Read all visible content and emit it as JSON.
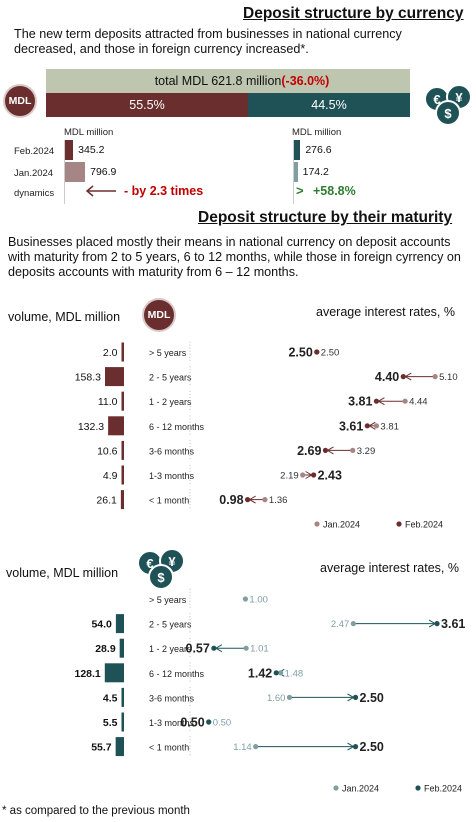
{
  "colors": {
    "mdl": "#6b2e2e",
    "mdl_light": "#a68585",
    "fx": "#1f5257",
    "fx_light": "#7f9fa3",
    "total_bar": "#bfc6b0",
    "negative": "#c00000",
    "positive": "#2e7d32"
  },
  "section1": {
    "title": "Deposit structure by currency",
    "intro": "The new term deposits attracted from businesses in national currency decreased, and those in foreign currency increased*.",
    "total_prefix": "total MDL 621.8 million ",
    "total_change": "(-36.0%)",
    "mdl_share_label": "55.5%",
    "fx_share_label": "44.5%",
    "mdl_share": 55.5,
    "mdl_icon_text": "MDL",
    "fx_icon_symbols": [
      "€",
      "¥",
      "$"
    ],
    "mdl_unit": "MDL million",
    "fx_unit": "MDL million",
    "rows": [
      {
        "label": "Feb.2024",
        "mdl": "345.2",
        "fx": "276.6",
        "mdl_value": 345.2,
        "fx_value": 276.6
      },
      {
        "label": "Jan.2024",
        "mdl": "796.9",
        "fx": "174.2",
        "mdl_value": 796.9,
        "fx_value": 174.2
      }
    ],
    "dynamics_label": "dynamics",
    "mdl_dynamics": "- by 2.3 times",
    "fx_dynamics": "+58.8%"
  },
  "section2": {
    "title": "Deposit structure by their maturity",
    "intro": "Businesses placed mostly their means in national currency on deposit accounts with maturity from 2 to 5 years,  6 to 12 months, while those in foreign cyrrency on deposits accounts with maturity from 6 – 12 months.",
    "volume_label": "volume, MDL million",
    "rates_label": "average interest rates, %",
    "legend_jan": "Jan.2024",
    "legend_feb": "Feb.2024"
  },
  "chart_data": [
    {
      "type": "bar",
      "title": "Deposit structure by currency",
      "categories": [
        "Feb.2024",
        "Jan.2024"
      ],
      "series": [
        {
          "name": "MDL",
          "values": [
            345.2,
            796.9
          ]
        },
        {
          "name": "foreign currency",
          "values": [
            276.6,
            174.2
          ]
        }
      ],
      "ylabel": "MDL million"
    },
    {
      "type": "bar",
      "title": "volume, MDL million",
      "currency": "MDL",
      "categories": [
        "> 5 years",
        "2 - 5 years",
        "1 - 2 years",
        "6 - 12 months",
        "3-6 months",
        "1-3 months",
        "< 1 month"
      ],
      "values": [
        2.0,
        158.3,
        11.0,
        132.3,
        10.6,
        4.9,
        26.1
      ],
      "value_labels": [
        "2.0",
        "158.3",
        "11.0",
        "132.3",
        "10.6",
        "4.9",
        "26.1"
      ]
    },
    {
      "type": "scatter",
      "title": "average interest rates, %",
      "currency": "MDL",
      "categories": [
        "> 5 years",
        "2 - 5 years",
        "1 - 2 years",
        "6 - 12 months",
        "3-6 months",
        "1-3 months",
        "< 1 month"
      ],
      "series": [
        {
          "name": "Jan.2024",
          "values": [
            2.5,
            5.1,
            4.44,
            3.81,
            3.29,
            2.19,
            1.36
          ]
        },
        {
          "name": "Feb.2024",
          "values": [
            2.5,
            4.4,
            3.81,
            3.61,
            2.69,
            2.43,
            0.98
          ]
        }
      ],
      "jan_labels": [
        "2.50",
        "5.10",
        "4.44",
        "3.81",
        "3.29",
        "2.19",
        "1.36"
      ],
      "feb_labels": [
        "2.50",
        "4.40",
        "3.81",
        "3.61",
        "2.69",
        "2.43",
        "0.98"
      ],
      "xlim": [
        0.0,
        5.8
      ]
    },
    {
      "type": "bar",
      "title": "volume, MDL million",
      "currency": "foreign currency",
      "categories": [
        "> 5 years",
        "2 - 5 years",
        "1 - 2 years",
        "6 - 12 months",
        "3-6 months",
        "1-3 months",
        "< 1 month"
      ],
      "values": [
        null,
        54.0,
        28.9,
        128.1,
        4.5,
        5.5,
        55.7
      ],
      "value_labels": [
        "",
        "54.0",
        "28.9",
        "128.1",
        "4.5",
        "5.5",
        "55.7"
      ]
    },
    {
      "type": "scatter",
      "title": "average interest rates, %",
      "currency": "foreign currency",
      "categories": [
        "> 5 years",
        "2 - 5 years",
        "1 - 2 years",
        "6 - 12 months",
        "3-6 months",
        "1-3 months",
        "< 1 month"
      ],
      "series": [
        {
          "name": "Jan.2024",
          "values": [
            1.0,
            2.47,
            1.01,
            1.48,
            1.6,
            0.5,
            1.14
          ]
        },
        {
          "name": "Feb.2024",
          "values": [
            null,
            3.61,
            0.57,
            1.42,
            2.5,
            0.5,
            2.5
          ]
        }
      ],
      "jan_labels": [
        "1.00",
        "2.47",
        "1.01",
        "1.48",
        "1.60",
        "0.50",
        "1.14"
      ],
      "feb_labels": [
        "",
        "3.61",
        "0.57",
        "1.42",
        "2.50",
        "0.50",
        "2.50"
      ],
      "xlim": [
        0.0,
        4.1
      ]
    }
  ],
  "footnote": "* as compared to the previous month"
}
